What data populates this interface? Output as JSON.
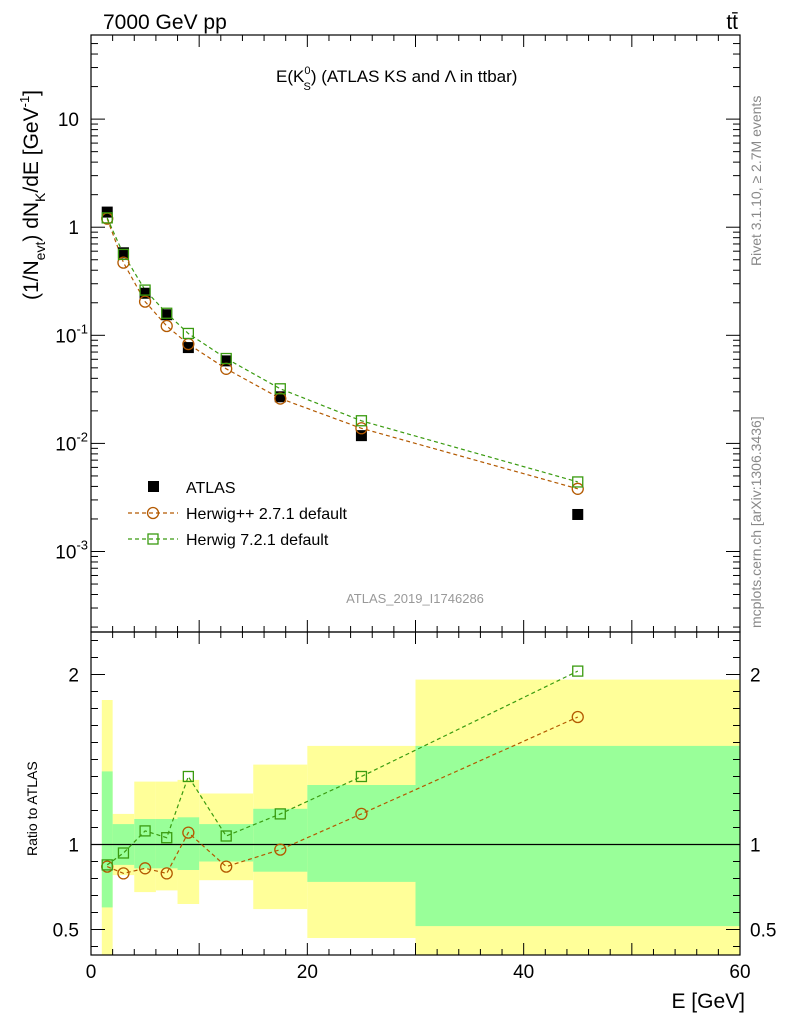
{
  "header": {
    "left": "7000 GeV pp",
    "right": "tt̄"
  },
  "side_labels": {
    "rivet": "Rivet 3.1.10, ≥ 2.7M events",
    "mcplots": "mcplots.cern.ch [arXiv:1306.3436]"
  },
  "chart_data": [
    {
      "type": "scatter",
      "panel": "main",
      "title_main": "E(K",
      "title_sup": "0",
      "title_sub": "S",
      "title_tail": ") (ATLAS KS and Λ in ttbar)",
      "ylabel": "(1/N_evt) dN_K/dE [GeV^-1]",
      "ylabel_parts": {
        "a": "(1/N",
        "b": "evt",
        "c": ") dN",
        "d": "K",
        "e": "/dE [GeV",
        "f": "-1",
        "g": "]"
      },
      "yscale": "log",
      "ylim": [
        0.00018,
        60
      ],
      "xlim": [
        0,
        60
      ],
      "yticks": [
        {
          "v": 0.001,
          "label": "10",
          "sup": "-3"
        },
        {
          "v": 0.01,
          "label": "10",
          "sup": "-2"
        },
        {
          "v": 0.1,
          "label": "10",
          "sup": "-1"
        },
        {
          "v": 1,
          "label": "1",
          "sup": ""
        },
        {
          "v": 10,
          "label": "10",
          "sup": ""
        }
      ],
      "watermark": "ATLAS_2019_I1746286",
      "legend_position": "lower-left",
      "series": [
        {
          "name": "ATLAS",
          "marker": "filled-square",
          "color": "#000000",
          "x": [
            1.5,
            3,
            5,
            7,
            9,
            12.5,
            17.5,
            25,
            45
          ],
          "y": [
            1.38,
            0.58,
            0.245,
            0.155,
            0.077,
            0.058,
            0.027,
            0.0118,
            0.0022
          ]
        },
        {
          "name": "Herwig++ 2.7.1 default",
          "marker": "open-circle",
          "color": "#b35900",
          "x": [
            1.5,
            3,
            5,
            7,
            9,
            12.5,
            17.5,
            25,
            45
          ],
          "y": [
            1.2,
            0.47,
            0.205,
            0.122,
            0.083,
            0.049,
            0.026,
            0.0138,
            0.0038
          ]
        },
        {
          "name": "Herwig 7.2.1 default",
          "marker": "open-square",
          "color": "#3a9b10",
          "x": [
            1.5,
            3,
            5,
            7,
            9,
            12.5,
            17.5,
            25,
            45
          ],
          "y": [
            1.22,
            0.56,
            0.262,
            0.16,
            0.104,
            0.061,
            0.032,
            0.0162,
            0.0044
          ]
        }
      ]
    },
    {
      "type": "scatter",
      "panel": "ratio",
      "xlabel": "E [GeV]",
      "ylabel": "Ratio to ATLAS",
      "ylim": [
        0.35,
        2.25
      ],
      "xlim": [
        0,
        60
      ],
      "xticks": [
        0,
        20,
        40,
        60
      ],
      "yticks": [
        0.5,
        1,
        2
      ],
      "reference": 1,
      "bands": [
        {
          "x0": 1,
          "x1": 2,
          "inner": [
            0.63,
            1.43
          ],
          "outer": [
            0.35,
            1.85
          ]
        },
        {
          "x0": 2,
          "x1": 4,
          "inner": [
            0.88,
            1.12
          ],
          "outer": [
            0.82,
            1.18
          ]
        },
        {
          "x0": 4,
          "x1": 6,
          "inner": [
            0.86,
            1.15
          ],
          "outer": [
            0.72,
            1.37
          ]
        },
        {
          "x0": 6,
          "x1": 8,
          "inner": [
            0.86,
            1.15
          ],
          "outer": [
            0.73,
            1.37
          ]
        },
        {
          "x0": 8,
          "x1": 10,
          "inner": [
            0.85,
            1.16
          ],
          "outer": [
            0.65,
            1.38
          ]
        },
        {
          "x0": 10,
          "x1": 15,
          "inner": [
            0.9,
            1.12
          ],
          "outer": [
            0.79,
            1.3
          ]
        },
        {
          "x0": 15,
          "x1": 20,
          "inner": [
            0.84,
            1.21
          ],
          "outer": [
            0.62,
            1.47
          ]
        },
        {
          "x0": 20,
          "x1": 30,
          "inner": [
            0.78,
            1.35
          ],
          "outer": [
            0.45,
            1.58
          ]
        },
        {
          "x0": 30,
          "x1": 60,
          "inner": [
            0.52,
            1.58
          ],
          "outer": [
            0.35,
            1.97
          ]
        }
      ],
      "series": [
        {
          "name": "Herwig++ 2.7.1 default",
          "marker": "open-circle",
          "color": "#b35900",
          "x": [
            1.5,
            3,
            5,
            7,
            9,
            12.5,
            17.5,
            25,
            45
          ],
          "y": [
            0.87,
            0.83,
            0.86,
            0.83,
            1.07,
            0.87,
            0.97,
            1.18,
            1.75
          ]
        },
        {
          "name": "Herwig 7.2.1 default",
          "marker": "open-square",
          "color": "#3a9b10",
          "x": [
            1.5,
            3,
            5,
            7,
            9,
            12.5,
            17.5,
            25,
            45
          ],
          "y": [
            0.88,
            0.95,
            1.08,
            1.04,
            1.4,
            1.05,
            1.18,
            1.4,
            2.02
          ]
        }
      ]
    }
  ]
}
